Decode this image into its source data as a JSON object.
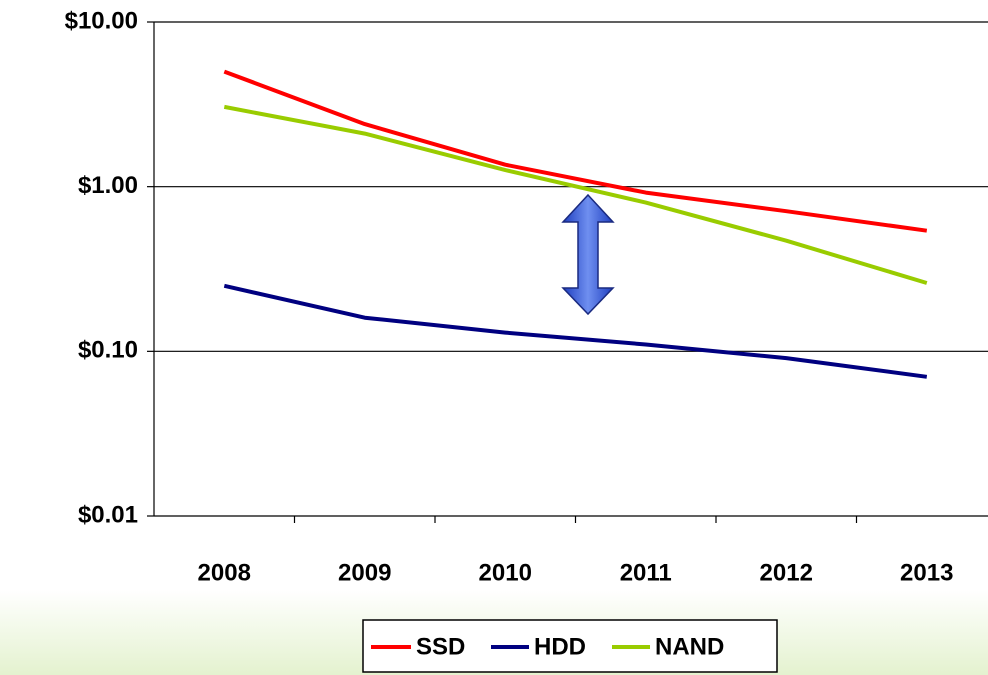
{
  "chart_data": {
    "type": "line",
    "categories": [
      "2008",
      "2009",
      "2010",
      "2011",
      "2012",
      "2013"
    ],
    "series": [
      {
        "name": "SSD",
        "color": "#ff0000",
        "values": [
          5.0,
          2.4,
          1.36,
          0.92,
          0.71,
          0.54
        ]
      },
      {
        "name": "HDD",
        "color": "#000080",
        "values": [
          0.25,
          0.16,
          0.13,
          0.11,
          0.091,
          0.07
        ]
      },
      {
        "name": "NAND",
        "color": "#99cc00",
        "values": [
          3.05,
          2.1,
          1.26,
          0.8,
          0.47,
          0.26
        ]
      }
    ],
    "ylim": [
      0.01,
      10
    ],
    "log_scale": true,
    "yticks": [
      {
        "value": 0.01,
        "label": "$0.01"
      },
      {
        "value": 0.1,
        "label": "$0.10"
      },
      {
        "value": 1,
        "label": "$1.00"
      },
      {
        "value": 10,
        "label": "$10.00"
      }
    ],
    "grid": true,
    "legend": "bottom"
  }
}
